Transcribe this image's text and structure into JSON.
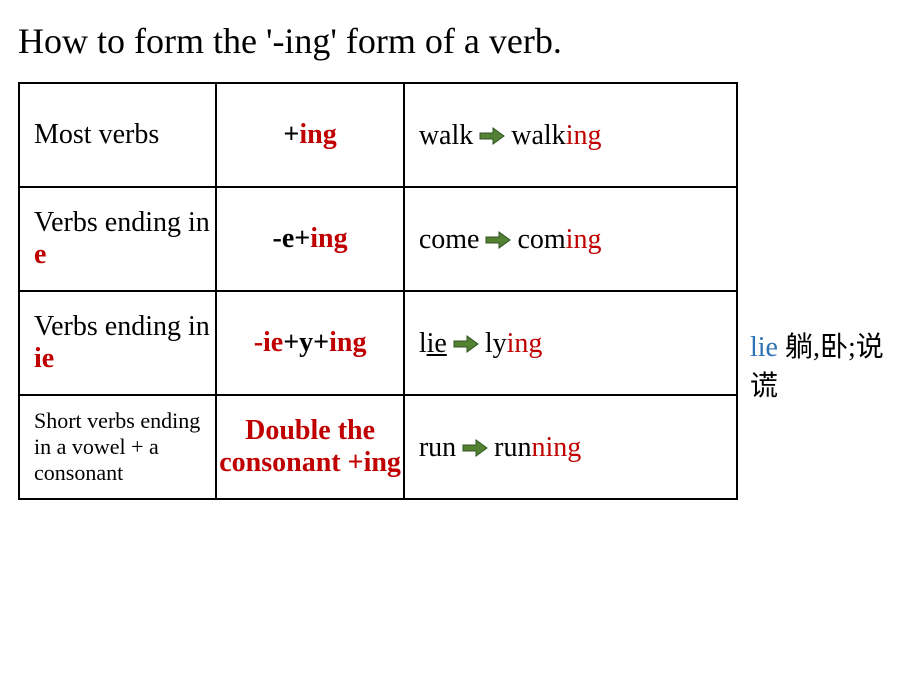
{
  "title": "How to form the '-ing' form of a verb.",
  "arrow": {
    "fill": "#548235",
    "stroke": "#2e5620",
    "width": 26,
    "height": 20
  },
  "rows": [
    {
      "category": {
        "pre": "Most verbs",
        "highlight": "",
        "post": ""
      },
      "rule": {
        "parts": [
          {
            "text": "+",
            "color": "black-bold"
          },
          {
            "text": "ing",
            "color": "red-bold"
          }
        ]
      },
      "example": {
        "before": {
          "stem": "walk",
          "stem_mark": "",
          "mark_underline": false,
          "tail": ""
        },
        "after": {
          "stem": "walk",
          "suffix": "ing"
        }
      }
    },
    {
      "category": {
        "pre": "Verbs ending in ",
        "highlight": "e",
        "post": ""
      },
      "rule": {
        "parts": [
          {
            "text": "-e+",
            "color": "black-bold"
          },
          {
            "text": "ing",
            "color": "red-bold"
          }
        ]
      },
      "example": {
        "before": {
          "stem": "come",
          "stem_mark": "",
          "mark_underline": false,
          "tail": ""
        },
        "after": {
          "stem": "com",
          "suffix": "ing"
        }
      }
    },
    {
      "category": {
        "pre": "Verbs ending in ",
        "highlight": "ie",
        "post": ""
      },
      "rule": {
        "parts": [
          {
            "text": "-ie",
            "color": "red-bold"
          },
          {
            "text": "+y+",
            "color": "black-bold"
          },
          {
            "text": "ing",
            "color": "red-bold"
          }
        ]
      },
      "example": {
        "before": {
          "stem": "l",
          "stem_mark": "ie",
          "mark_underline": true,
          "tail": ""
        },
        "after": {
          "stem": "ly",
          "suffix": "ing"
        }
      }
    },
    {
      "category": {
        "pre": "Short verbs ending in a vowel + a consonant",
        "highlight": "",
        "post": ""
      },
      "rule": {
        "parts": [
          {
            "text": "Double the consonant +ing",
            "color": "red-bold"
          }
        ]
      },
      "example": {
        "before": {
          "stem": "run",
          "stem_mark": "",
          "mark_underline": false,
          "tail": ""
        },
        "after": {
          "stem": "run",
          "suffix": "ning"
        }
      }
    }
  ],
  "side_note": {
    "word": "lie",
    "meaning": " 躺,卧;说谎"
  }
}
